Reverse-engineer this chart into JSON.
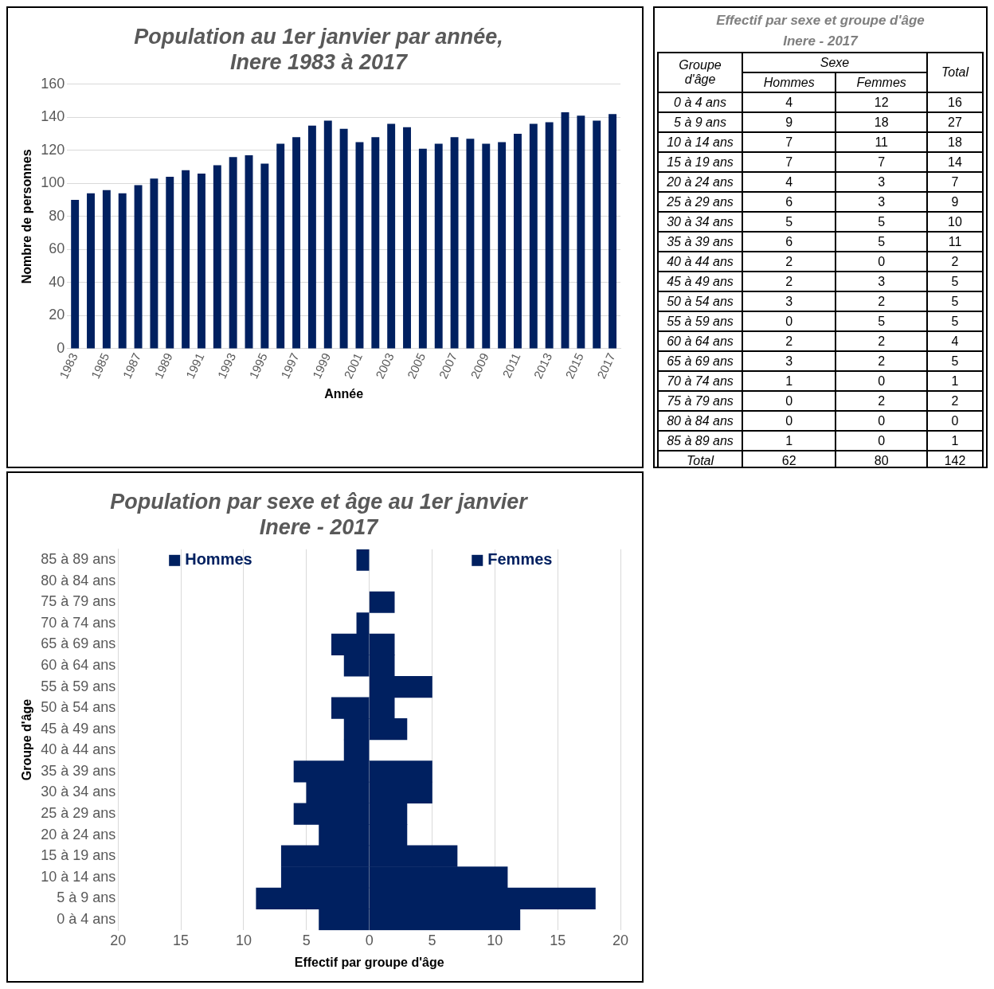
{
  "chart_data": [
    {
      "type": "bar",
      "title": "Population au 1er janvier par année,",
      "subtitle": "Inere 1983 à 2017",
      "xlabel": "Année",
      "ylabel": "Nombre de personnes",
      "categories": [
        "1983",
        null,
        "1985",
        null,
        "1987",
        null,
        "1989",
        null,
        "1991",
        null,
        "1993",
        null,
        "1995",
        null,
        "1997",
        null,
        "1999",
        null,
        "2001",
        null,
        "2003",
        null,
        "2005",
        null,
        "2007",
        null,
        "2009",
        null,
        "2011",
        null,
        "2013",
        null,
        "2015",
        null,
        "2017"
      ],
      "values": [
        90,
        94,
        96,
        94,
        99,
        103,
        104,
        108,
        106,
        111,
        116,
        117,
        112,
        124,
        128,
        135,
        138,
        133,
        125,
        128,
        136,
        134,
        121,
        124,
        128,
        127,
        124,
        125,
        130,
        136,
        137,
        143,
        141,
        138,
        142
      ],
      "color": "#002060",
      "ylim": [
        0,
        160
      ],
      "yticks": [
        0,
        20,
        40,
        60,
        80,
        100,
        120,
        140,
        160
      ],
      "grid": "y"
    },
    {
      "type": "other",
      "title": "Effectif par sexe et groupe d'âge",
      "subtitle": "Inere - 2017",
      "ylabel": "Groupe d'âge",
      "legend_title": "Sexe",
      "data_labels": true,
      "categories": [
        "0 à 4 ans",
        "5 à 9 ans",
        "10 à 14 ans",
        "15 à 19 ans",
        "20 à 24 ans",
        "25 à 29 ans",
        "30 à 34 ans",
        "35 à 39 ans",
        "40 à 44 ans",
        "45 à 49 ans",
        "50 à 54 ans",
        "55 à 59 ans",
        "60 à 64 ans",
        "65 à 69 ans",
        "70 à 74 ans",
        "75 à 79 ans",
        "80 à 84 ans",
        "85 à 89 ans",
        "Total"
      ],
      "series": [
        {
          "name": "Hommes",
          "values": [
            4,
            9,
            7,
            7,
            4,
            6,
            5,
            6,
            2,
            2,
            3,
            0,
            2,
            3,
            1,
            0,
            0,
            1,
            62
          ]
        },
        {
          "name": "Femmes",
          "values": [
            12,
            18,
            11,
            7,
            3,
            3,
            5,
            5,
            0,
            3,
            2,
            5,
            2,
            2,
            0,
            2,
            0,
            0,
            80
          ]
        },
        {
          "name": "Total",
          "values": [
            16,
            27,
            18,
            14,
            7,
            9,
            10,
            11,
            2,
            5,
            5,
            5,
            4,
            5,
            1,
            2,
            0,
            1,
            142
          ]
        }
      ]
    },
    {
      "type": "bar",
      "orientation": "horizontal",
      "stacked": true,
      "title": "Population par sexe et âge au 1er janvier",
      "subtitle": "Inere - 2017",
      "xlabel": "Effectif par groupe d'âge",
      "ylabel": "Groupe d'âge",
      "categories": [
        "85 à 89 ans",
        "80 à 84 ans",
        "75 à 79 ans",
        "70 à 74 ans",
        "65 à 69 ans",
        "60 à 64 ans",
        "55 à 59 ans",
        "50 à 54 ans",
        "45 à 49 ans",
        "40 à 44 ans",
        "35 à 39 ans",
        "30 à 34 ans",
        "25 à 29 ans",
        "20 à 24 ans",
        "15 à 19 ans",
        "10 à 14 ans",
        "5 à 9 ans",
        "0 à 4 ans"
      ],
      "series": [
        {
          "name": "Hommes",
          "color": "#002060",
          "values": [
            -1,
            0,
            0,
            -1,
            -3,
            -2,
            0,
            -3,
            -2,
            -2,
            -6,
            -5,
            -6,
            -4,
            -7,
            -7,
            -9,
            -4
          ]
        },
        {
          "name": "Femmes",
          "color": "#002060",
          "values": [
            0,
            0,
            2,
            0,
            2,
            2,
            5,
            2,
            3,
            0,
            5,
            5,
            3,
            3,
            7,
            11,
            18,
            12
          ]
        }
      ],
      "legend": "top",
      "xlim": [
        -20,
        20
      ],
      "xticks": [
        {
          "value": -20,
          "label": "20"
        },
        {
          "value": -15,
          "label": "15"
        },
        {
          "value": -10,
          "label": "10"
        },
        {
          "value": -5,
          "label": "5"
        },
        0,
        5,
        10,
        15,
        20
      ],
      "grid": "x"
    }
  ]
}
